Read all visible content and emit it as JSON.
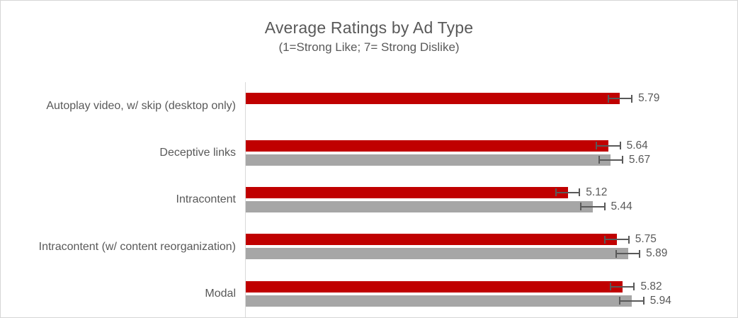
{
  "chart_data": {
    "type": "bar",
    "orientation": "horizontal",
    "title": "Average Ratings by Ad Type",
    "subtitle": "(1=Strong Like; 7= Strong Dislike)",
    "categories": [
      "Autoplay video, w/ skip (desktop only)",
      "Deceptive links",
      "Intracontent",
      "Intracontent (w/ content reorganization)",
      "Modal"
    ],
    "series": [
      {
        "name": "red",
        "color": "#c00000",
        "values": [
          5.79,
          5.64,
          5.12,
          5.75,
          5.82
        ],
        "labels": [
          "5.79",
          "5.64",
          "5.12",
          "5.75",
          "5.82"
        ],
        "errors": [
          0.16,
          0.16,
          0.16,
          0.16,
          0.16
        ]
      },
      {
        "name": "gray",
        "color": "#a6a6a6",
        "values": [
          null,
          5.67,
          5.44,
          5.89,
          5.94
        ],
        "labels": [
          null,
          "5.67",
          "5.44",
          "5.89",
          "5.94"
        ],
        "errors": [
          null,
          0.16,
          0.16,
          0.16,
          0.16
        ]
      }
    ],
    "xlim": [
      1,
      7
    ],
    "gridlines": false,
    "legend": "none",
    "error_bars": true,
    "value_labels_shown": true
  },
  "colors": {
    "bar_red": "#c00000",
    "bar_gray": "#a6a6a6",
    "error_bar": "#595959",
    "text": "#595959",
    "axis_line": "#d9d9d9",
    "frame_border": "#d6d6d6",
    "background": "#ffffff"
  }
}
